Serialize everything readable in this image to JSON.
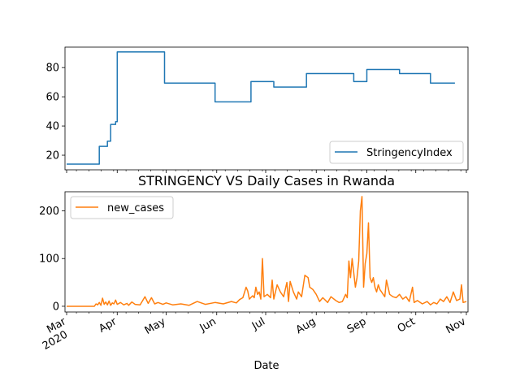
{
  "chart_data": [
    {
      "type": "line",
      "title": "",
      "xlabel": "",
      "ylabel": "",
      "ylim": [
        10,
        94
      ],
      "yticks": [
        20,
        40,
        60,
        80
      ],
      "legend": "lower-right",
      "grid": false,
      "series": [
        {
          "name": "StringencyIndex",
          "color": "#1f77b4",
          "x": [
            "2020-03-01",
            "2020-03-21",
            "2020-03-21",
            "2020-03-26",
            "2020-03-26",
            "2020-03-28",
            "2020-03-28",
            "2020-03-29",
            "2020-03-29",
            "2020-03-31",
            "2020-03-31",
            "2020-04-01",
            "2020-04-01",
            "2020-04-30",
            "2020-04-30",
            "2020-05-31",
            "2020-05-31",
            "2020-06-22",
            "2020-06-22",
            "2020-07-06",
            "2020-07-06",
            "2020-07-26",
            "2020-07-26",
            "2020-08-24",
            "2020-08-24",
            "2020-09-01",
            "2020-09-01",
            "2020-09-21",
            "2020-09-21",
            "2020-10-07",
            "2020-10-07",
            "2020-10-10",
            "2020-10-10",
            "2020-10-25"
          ],
          "y": [
            13.9,
            13.9,
            26.1,
            26.1,
            29.6,
            29.6,
            41.1,
            41.1,
            41.1,
            41.1,
            43.0,
            43.0,
            90.7,
            90.7,
            69.4,
            69.4,
            56.5,
            56.5,
            70.4,
            70.4,
            66.7,
            66.7,
            75.9,
            75.9,
            70.4,
            70.4,
            78.7,
            78.7,
            75.9,
            75.9,
            75.9,
            75.9,
            69.4,
            69.4
          ]
        }
      ]
    },
    {
      "type": "line",
      "title": "STRINGENCY VS Daily Cases in Rwanda",
      "xlabel": "Date",
      "ylabel": "",
      "ylim": [
        -12,
        240
      ],
      "yticks": [
        0,
        100,
        200
      ],
      "legend": "upper-left",
      "grid": false,
      "xticks": [
        {
          "date": "2020-03-01",
          "label": "Mar",
          "sublabel": "2020"
        },
        {
          "date": "2020-04-01",
          "label": "Apr",
          "sublabel": ""
        },
        {
          "date": "2020-05-01",
          "label": "May",
          "sublabel": ""
        },
        {
          "date": "2020-06-01",
          "label": "Jun",
          "sublabel": ""
        },
        {
          "date": "2020-07-01",
          "label": "Jul",
          "sublabel": ""
        },
        {
          "date": "2020-08-01",
          "label": "Aug",
          "sublabel": ""
        },
        {
          "date": "2020-09-01",
          "label": "Sep",
          "sublabel": ""
        },
        {
          "date": "2020-10-01",
          "label": "Oct",
          "sublabel": ""
        },
        {
          "date": "2020-11-01",
          "label": "Nov",
          "sublabel": ""
        }
      ],
      "series": [
        {
          "name": "new_cases",
          "color": "#ff7f0e",
          "x": [
            "2020-03-01",
            "2020-03-14",
            "2020-03-18",
            "2020-03-19",
            "2020-03-20",
            "2020-03-21",
            "2020-03-22",
            "2020-03-23",
            "2020-03-24",
            "2020-03-25",
            "2020-03-26",
            "2020-03-27",
            "2020-03-28",
            "2020-03-29",
            "2020-03-30",
            "2020-03-31",
            "2020-04-01",
            "2020-04-03",
            "2020-04-05",
            "2020-04-07",
            "2020-04-08",
            "2020-04-10",
            "2020-04-12",
            "2020-04-15",
            "2020-04-18",
            "2020-04-20",
            "2020-04-22",
            "2020-04-24",
            "2020-04-26",
            "2020-04-29",
            "2020-05-01",
            "2020-05-05",
            "2020-05-10",
            "2020-05-15",
            "2020-05-20",
            "2020-05-25",
            "2020-05-31",
            "2020-06-05",
            "2020-06-10",
            "2020-06-13",
            "2020-06-15",
            "2020-06-17",
            "2020-06-19",
            "2020-06-20",
            "2020-06-21",
            "2020-06-23",
            "2020-06-24",
            "2020-06-25",
            "2020-06-26",
            "2020-06-27",
            "2020-06-28",
            "2020-06-29",
            "2020-06-30",
            "2020-07-02",
            "2020-07-04",
            "2020-07-05",
            "2020-07-06",
            "2020-07-08",
            "2020-07-10",
            "2020-07-12",
            "2020-07-14",
            "2020-07-15",
            "2020-07-16",
            "2020-07-18",
            "2020-07-20",
            "2020-07-21",
            "2020-07-23",
            "2020-07-25",
            "2020-07-27",
            "2020-07-28",
            "2020-07-30",
            "2020-08-01",
            "2020-08-03",
            "2020-08-05",
            "2020-08-08",
            "2020-08-10",
            "2020-08-13",
            "2020-08-15",
            "2020-08-17",
            "2020-08-19",
            "2020-08-20",
            "2020-08-21",
            "2020-08-22",
            "2020-08-23",
            "2020-08-24",
            "2020-08-25",
            "2020-08-26",
            "2020-08-27",
            "2020-08-28",
            "2020-08-29",
            "2020-08-30",
            "2020-08-31",
            "2020-09-01",
            "2020-09-02",
            "2020-09-03",
            "2020-09-04",
            "2020-09-05",
            "2020-09-06",
            "2020-09-07",
            "2020-09-08",
            "2020-09-09",
            "2020-09-10",
            "2020-09-11",
            "2020-09-12",
            "2020-09-13",
            "2020-09-15",
            "2020-09-17",
            "2020-09-19",
            "2020-09-21",
            "2020-09-23",
            "2020-09-25",
            "2020-09-27",
            "2020-09-29",
            "2020-09-30",
            "2020-10-02",
            "2020-10-05",
            "2020-10-08",
            "2020-10-10",
            "2020-10-12",
            "2020-10-14",
            "2020-10-16",
            "2020-10-18",
            "2020-10-20",
            "2020-10-22",
            "2020-10-24",
            "2020-10-26",
            "2020-10-28",
            "2020-10-29",
            "2020-10-30",
            "2020-11-01"
          ],
          "y": [
            0,
            0,
            0,
            5,
            3,
            8,
            2,
            17,
            4,
            9,
            3,
            11,
            2,
            7,
            5,
            13,
            4,
            8,
            3,
            6,
            2,
            9,
            4,
            3,
            20,
            6,
            18,
            5,
            8,
            4,
            7,
            3,
            5,
            2,
            10,
            4,
            8,
            5,
            10,
            7,
            14,
            18,
            40,
            32,
            15,
            22,
            18,
            40,
            25,
            30,
            15,
            100,
            20,
            25,
            18,
            55,
            15,
            45,
            30,
            20,
            50,
            10,
            52,
            30,
            15,
            30,
            20,
            65,
            60,
            40,
            35,
            25,
            10,
            18,
            8,
            20,
            12,
            8,
            10,
            25,
            18,
            95,
            60,
            100,
            70,
            40,
            60,
            95,
            200,
            230,
            40,
            90,
            110,
            175,
            60,
            50,
            60,
            40,
            30,
            45,
            35,
            30,
            25,
            20,
            55,
            25,
            20,
            18,
            25,
            15,
            20,
            10,
            40,
            8,
            12,
            5,
            10,
            3,
            8,
            5,
            15,
            10,
            20,
            8,
            30,
            12,
            15,
            45,
            8,
            10
          ]
        }
      ]
    }
  ]
}
